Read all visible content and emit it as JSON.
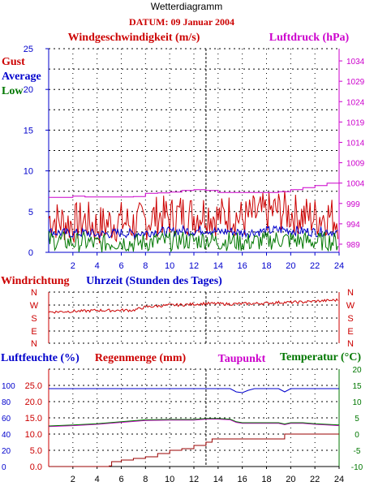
{
  "header": {
    "title": "Wetterdiagramm",
    "date": "DATUM: 09 Januar 2004"
  },
  "colors": {
    "red": "#cc0000",
    "blue": "#0000cc",
    "green": "#007700",
    "magenta": "#cc00cc",
    "darkred": "#990000",
    "grid": "#000000"
  },
  "chart_data": [
    {
      "type": "line",
      "title": "Windgeschwindigkeit (m/s)",
      "right_title": "Luftdruck (hPa)",
      "xlabel": "Uhrzeit (Stunden des Tages)",
      "legend_position": "top-left",
      "xlim": [
        0,
        24
      ],
      "ylim": [
        0,
        25
      ],
      "y2lim": [
        987,
        1037
      ],
      "x_ticks": [
        "2",
        "4",
        "6",
        "8",
        "10",
        "12",
        "14",
        "16",
        "18",
        "20",
        "22",
        "24"
      ],
      "y_ticks": [
        "0",
        "5",
        "10",
        "15",
        "20",
        "25"
      ],
      "y2_ticks": [
        "989",
        "994",
        "999",
        "1004",
        "1009",
        "1014",
        "1019",
        "1024",
        "1029",
        "1034"
      ],
      "grid": true,
      "series": [
        {
          "name": "Gust",
          "color": "#cc0000",
          "x": [
            0,
            1,
            2,
            3,
            4,
            5,
            6,
            7,
            8,
            9,
            10,
            11,
            12,
            13,
            14,
            15,
            16,
            17,
            18,
            19,
            20,
            21,
            22,
            23,
            24
          ],
          "values": [
            4.2,
            3.8,
            3.5,
            3.9,
            3.2,
            3.6,
            3.8,
            3.4,
            3.9,
            4.5,
            4.3,
            4.8,
            4.5,
            5.0,
            4.2,
            4.8,
            4.0,
            4.6,
            4.8,
            5.2,
            4.8,
            4.5,
            4.3,
            4.6,
            4.0
          ]
        },
        {
          "name": "Average",
          "color": "#0000cc",
          "x": [
            0,
            1,
            2,
            3,
            4,
            5,
            6,
            7,
            8,
            9,
            10,
            11,
            12,
            13,
            14,
            15,
            16,
            17,
            18,
            19,
            20,
            21,
            22,
            23,
            24
          ],
          "values": [
            2.5,
            2.4,
            2.3,
            2.4,
            2.2,
            2.3,
            2.4,
            2.3,
            2.4,
            2.6,
            2.5,
            2.7,
            2.6,
            2.8,
            2.5,
            2.6,
            2.4,
            2.5,
            2.6,
            2.8,
            2.7,
            2.6,
            2.5,
            2.6,
            2.4
          ]
        },
        {
          "name": "Low",
          "color": "#007700",
          "x": [
            0,
            1,
            2,
            3,
            4,
            5,
            6,
            7,
            8,
            9,
            10,
            11,
            12,
            13,
            14,
            15,
            16,
            17,
            18,
            19,
            20,
            21,
            22,
            23,
            24
          ],
          "values": [
            1.5,
            1.4,
            1.2,
            1.3,
            1.0,
            1.2,
            1.3,
            1.1,
            1.2,
            1.4,
            1.3,
            1.5,
            1.4,
            1.6,
            1.3,
            1.4,
            1.2,
            1.3,
            1.4,
            1.6,
            1.5,
            1.4,
            1.3,
            1.4,
            1.2
          ]
        },
        {
          "name": "Luftdruck",
          "color": "#cc00cc",
          "axis": "right",
          "x": [
            0,
            1,
            2,
            3,
            4,
            5,
            6,
            7,
            8,
            9,
            10,
            11,
            12,
            13,
            14,
            15,
            16,
            17,
            18,
            19,
            20,
            21,
            22,
            23,
            24
          ],
          "values": [
            1000.5,
            1000.5,
            1000.8,
            1000.6,
            1000.6,
            1000.6,
            1000.6,
            1000.7,
            1001.5,
            1001.6,
            1001.8,
            1002.2,
            1002.4,
            1002.2,
            1001.7,
            1001.7,
            1001.7,
            1001.7,
            1001.7,
            1001.9,
            1002.4,
            1002.9,
            1003.4,
            1004.0,
            1004.6
          ]
        }
      ]
    },
    {
      "type": "line",
      "title": "Windrichtung",
      "xlim": [
        0,
        24
      ],
      "y_ticks": [
        "N",
        "W",
        "S",
        "E",
        "N"
      ],
      "y2_ticks": [
        "N",
        "W",
        "S",
        "E",
        "N"
      ],
      "grid": true,
      "series": [
        {
          "name": "Windrichtung",
          "color": "#cc0000",
          "x": [
            0,
            1,
            2,
            3,
            4,
            5,
            6,
            7,
            8,
            9,
            10,
            11,
            12,
            13,
            14,
            15,
            16,
            17,
            18,
            19,
            20,
            21,
            22,
            23,
            24
          ],
          "values": [
            220,
            222,
            225,
            226,
            232,
            230,
            232,
            232,
            255,
            262,
            268,
            270,
            275,
            280,
            278,
            276,
            278,
            279,
            282,
            287,
            288,
            290,
            296,
            300,
            305
          ]
        }
      ]
    },
    {
      "type": "line",
      "title": "Luftfeuchte (%)",
      "secondary_titles": [
        "Regenmenge (mm)",
        "Taupunkt",
        "Temperatur (°C)"
      ],
      "xlim": [
        0,
        24
      ],
      "humidity_ticks": [
        "0",
        "20",
        "40",
        "60",
        "80",
        "100"
      ],
      "rain_ticks": [
        "0.0",
        "5.0",
        "10.0",
        "15.0",
        "20.0",
        "25.0"
      ],
      "temp_ticks": [
        "-10",
        "-5",
        "0",
        "5",
        "10",
        "15",
        "20"
      ],
      "x_ticks": [
        "2",
        "4",
        "6",
        "8",
        "10",
        "12",
        "14",
        "16",
        "18",
        "20",
        "22",
        "24"
      ],
      "grid": true,
      "series": [
        {
          "name": "Luftfeuchte",
          "color": "#0000cc",
          "x": [
            0,
            1,
            2,
            3,
            4,
            5,
            6,
            7,
            8,
            9,
            10,
            11,
            12,
            13,
            14,
            15,
            15.5,
            16,
            16.5,
            17,
            18,
            19,
            19.5,
            20,
            21,
            22,
            23,
            24
          ],
          "values": [
            96,
            96,
            96,
            96,
            96,
            96,
            96,
            96,
            96,
            96,
            96,
            96,
            96,
            96,
            96,
            96,
            92,
            91,
            94,
            96,
            96,
            96,
            92,
            96,
            96,
            96,
            96,
            96
          ]
        },
        {
          "name": "Regenmenge",
          "color": "#990000",
          "x": [
            0,
            4.8,
            5,
            5.2,
            6,
            7,
            8,
            9,
            10,
            11,
            12,
            13,
            13.5,
            14,
            15,
            15.5,
            16,
            17,
            18,
            19,
            19.5,
            20,
            21,
            22,
            23,
            23.5,
            24
          ],
          "values": [
            0,
            0,
            0.2,
            1.5,
            2.0,
            2.5,
            3.0,
            4.0,
            5.0,
            5.5,
            6.5,
            7.5,
            8.5,
            8.5,
            8.5,
            8.5,
            8.5,
            8.5,
            8.5,
            8.5,
            10.0,
            10.0,
            10.0,
            10.0,
            10.0,
            10.0,
            10.0
          ]
        },
        {
          "name": "Taupunkt",
          "color": "#cc00cc",
          "x": [
            0,
            2,
            4,
            6,
            8,
            10,
            12,
            13,
            14,
            15,
            15.5,
            16,
            17,
            18,
            19,
            19.5,
            20,
            21,
            22,
            23,
            24
          ],
          "values": [
            2.3,
            2.6,
            3.0,
            3.6,
            4.2,
            4.3,
            4.3,
            4.6,
            4.6,
            4.4,
            3.6,
            3.3,
            3.3,
            3.3,
            3.3,
            2.9,
            3.3,
            3.3,
            3.0,
            2.8,
            2.6
          ]
        },
        {
          "name": "Temperatur",
          "color": "#007700",
          "x": [
            0,
            2,
            4,
            6,
            8,
            10,
            12,
            13,
            14,
            15,
            15.5,
            16,
            17,
            18,
            19,
            19.5,
            20,
            21,
            22,
            23,
            24
          ],
          "values": [
            2.5,
            2.8,
            3.2,
            3.8,
            4.4,
            4.5,
            4.5,
            4.8,
            4.8,
            4.6,
            3.8,
            3.5,
            3.5,
            3.5,
            3.5,
            3.1,
            3.5,
            3.5,
            3.2,
            3.0,
            2.8
          ]
        }
      ]
    }
  ]
}
